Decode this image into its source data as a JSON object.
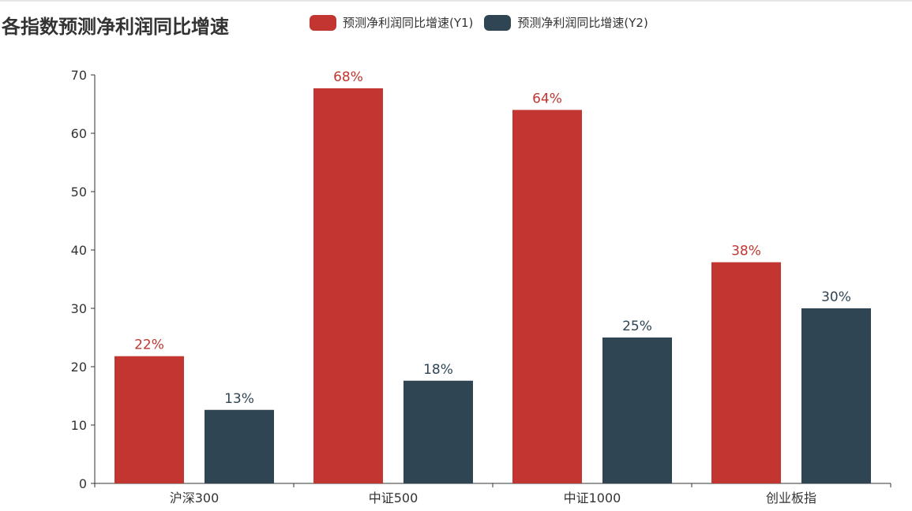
{
  "chart_data": {
    "type": "bar",
    "title": "各指数预测净利润同比增速",
    "categories": [
      "沪深300",
      "中证500",
      "中证1000",
      "创业板指"
    ],
    "series": [
      {
        "name": "预测净利润同比增速(Y1)",
        "values": [
          21.8,
          67.7,
          64.0,
          37.9
        ],
        "labels": [
          "22%",
          "68%",
          "64%",
          "38%"
        ],
        "color": "#c23531"
      },
      {
        "name": "预测净利润同比增速(Y2)",
        "values": [
          12.6,
          17.6,
          25.0,
          30.0
        ],
        "labels": [
          "13%",
          "18%",
          "25%",
          "30%"
        ],
        "color": "#2f4554"
      }
    ],
    "yticks": [
      0,
      10,
      20,
      30,
      40,
      50,
      60,
      70
    ],
    "ylim": [
      0,
      70
    ],
    "grid": false,
    "legend": "top"
  }
}
